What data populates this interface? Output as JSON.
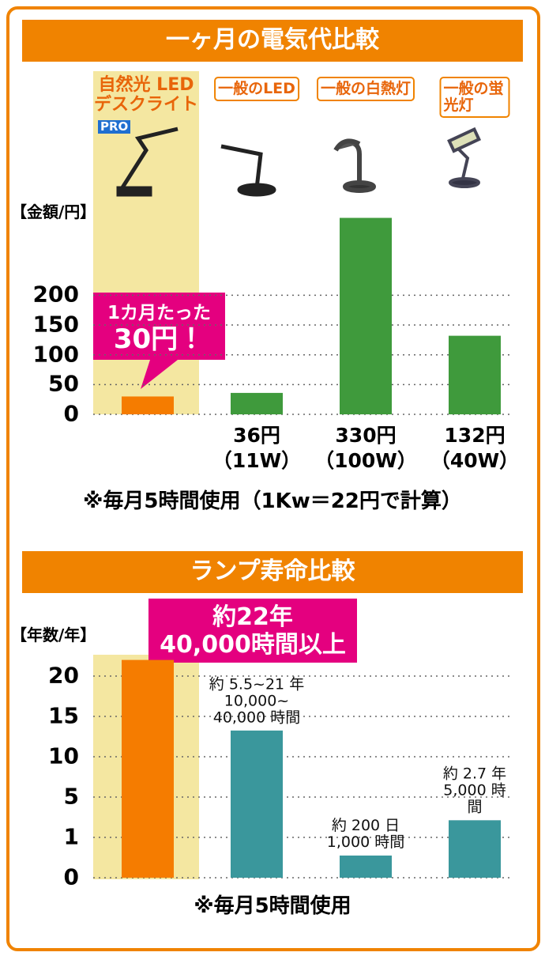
{
  "chart_data": [
    {
      "type": "bar",
      "title": "一ヶ月の電気代比較",
      "y_label": "【金額/円】",
      "categories": [
        "自然光 LED\nデスクライト",
        "一般のLED",
        "一般の白熱灯",
        "一般の蛍光灯"
      ],
      "badge": "PRO",
      "values": [
        30,
        36,
        330,
        132
      ],
      "value_labels": [
        null,
        "36円",
        "330円",
        "132円"
      ],
      "sub_labels": [
        null,
        "（11W）",
        "（100W）",
        "（40W）"
      ],
      "annotation": "1カ月たった\n30円！",
      "colors": [
        "#f57c00",
        "#3f9a3c",
        "#3f9a3c",
        "#3f9a3c"
      ],
      "ylim": [
        0,
        340
      ],
      "yticks": [
        0,
        50,
        100,
        150,
        200
      ],
      "grid": true,
      "note": "※毎月5時間使用（1Kw＝22円で計算）"
    },
    {
      "type": "bar",
      "title": "ランプ寿命比較",
      "y_label": "【年数/年】",
      "values": [
        22,
        13.25,
        0.55,
        2.7
      ],
      "value_labels": [
        "約22年",
        "約 5.5~21 年",
        "約 200 日",
        "約 2.7 年"
      ],
      "sub_labels": [
        "40,000時間以上",
        "10,000~\n40,000 時間",
        "1,000 時間",
        "5,000 時間"
      ],
      "colors": [
        "#f57c00",
        "#3a979c",
        "#3a979c",
        "#3a979c"
      ],
      "ylim": [
        0,
        22
      ],
      "yticks": [
        0,
        1,
        5,
        10,
        15,
        20
      ],
      "yscale": "even-ticks",
      "grid": true,
      "note": "※毎月5時間使用"
    }
  ]
}
